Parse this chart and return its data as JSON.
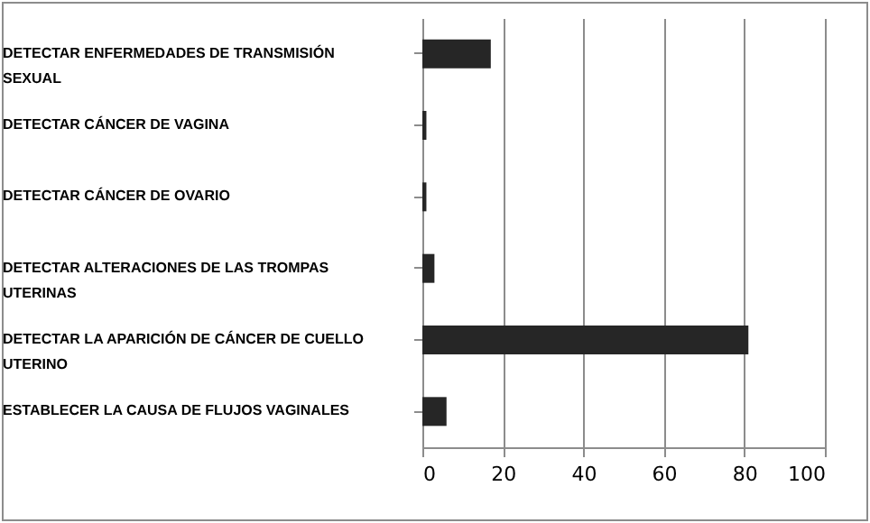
{
  "chart_data": {
    "type": "bar",
    "orientation": "horizontal",
    "categories": [
      "DETECTAR ENFERMEDADES DE TRANSMISIÓN SEXUAL",
      "DETECTAR CÁNCER DE VAGINA",
      "DETECTAR CÁNCER DE OVARIO",
      "DETECTAR ALTERACIONES DE LAS TROMPAS UTERINAS",
      "DETECTAR LA APARICIÓN DE CÁNCER DE CUELLO UTERINO",
      "ESTABLECER LA CAUSA DE FLUJOS VAGINALES"
    ],
    "values": [
      17,
      1,
      1,
      3,
      81,
      6
    ],
    "color": "#262626",
    "xlim": [
      0,
      100
    ],
    "xticks": [
      0,
      20,
      40,
      60,
      80,
      100
    ],
    "grid": "x"
  }
}
